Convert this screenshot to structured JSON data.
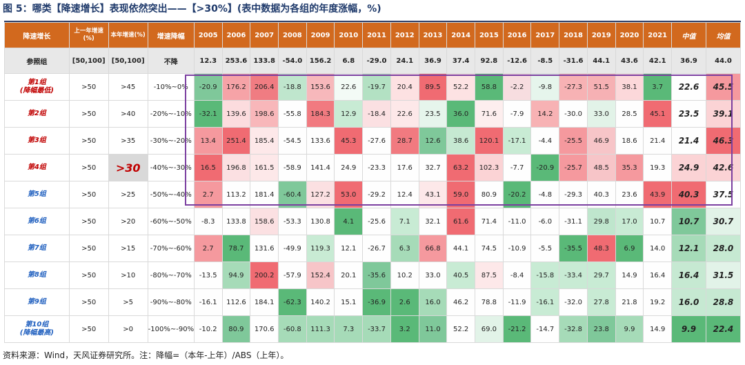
{
  "title": "图 5：哪类【降速增长】表现依然突出——【>30%】(表中数据为各组的年度涨幅，%)",
  "footnote": "资料来源：Wind，天风证券研究所。注：降幅=（本年-上年）/ABS（上年）。",
  "headers": [
    "降速增长",
    "上一年增速(%)",
    "本年增速(%)",
    "增速降幅",
    "2005",
    "2006",
    "2007",
    "2008",
    "2009",
    "2010",
    "2011",
    "2012",
    "2013",
    "2014",
    "2015",
    "2016",
    "2017",
    "2018",
    "2019",
    "2020",
    "2021",
    "中值",
    "均值"
  ],
  "reference": {
    "name": "参照组",
    "prev": "[50,100]",
    "cur": "[50,100]",
    "drop": "不降",
    "values": [
      "12.3",
      "253.6",
      "133.8",
      "-54.0",
      "156.2",
      "6.8",
      "-29.0",
      "24.1",
      "36.9",
      "37.4",
      "92.8",
      "-12.6",
      "-8.5",
      "-31.6",
      "44.1",
      "43.6",
      "42.1"
    ],
    "median": "36.9",
    "mean": "44.0"
  },
  "groups": [
    {
      "name": "第1组",
      "sub": "(降幅最低)",
      "red": true,
      "prev": ">50",
      "cur": ">45",
      "drop": "-10%~0%",
      "values": [
        "-20.9",
        "176.2",
        "206.4",
        "-18.8",
        "153.6",
        "22.6",
        "-19.7",
        "20.4",
        "89.5",
        "52.2",
        "58.8",
        "-2.2",
        "-9.8",
        "-27.3",
        "51.5",
        "38.1",
        "3.7"
      ],
      "colors": [
        "#7fc89a",
        "#f6a3a7",
        "#f07c82",
        "#bfe6cd",
        "#f7b8bb",
        "#f3fbf6",
        "#b3e1c3",
        "#fde1e2",
        "#f06b72",
        "#fde2e3",
        "#5ab978",
        "#f7dde0",
        "#e6f5ec",
        "#f7b2b4",
        "#f6b1b4",
        "#fcd8da",
        "#5ab978"
      ],
      "median": "22.6",
      "mean": "45.5",
      "median_color": "#fefefe",
      "mean_color": "#f5999e"
    },
    {
      "name": "第2组",
      "sub": "",
      "red": true,
      "prev": ">50",
      "cur": ">40",
      "drop": "-20%~-10%",
      "values": [
        "-32.1",
        "139.6",
        "198.6",
        "-55.8",
        "184.3",
        "12.9",
        "-18.4",
        "22.6",
        "23.5",
        "36.0",
        "71.6",
        "-7.9",
        "14.2",
        "-30.0",
        "33.0",
        "28.5",
        "45.1"
      ],
      "colors": [
        "#5ab978",
        "#fcdcde",
        "#f8b7ba",
        "#fefefe",
        "#f17a80",
        "#c8ebd4",
        "#fbe0e2",
        "#fde8e9",
        "#e6f5ec",
        "#5ab978",
        "#fdeeee",
        "#fefefe",
        "#f7b2b4",
        "#fefefe",
        "#e2f3e8",
        "#fefefe",
        "#f06b72"
      ],
      "median": "23.5",
      "mean": "39.1",
      "median_color": "#fefefe",
      "mean_color": "#fbd3d5"
    },
    {
      "name": "第3组",
      "sub": "",
      "red": true,
      "prev": ">50",
      "cur": ">35",
      "drop": "-30%~-20%",
      "values": [
        "13.4",
        "251.4",
        "185.4",
        "-54.5",
        "133.6",
        "45.3",
        "-27.6",
        "28.7",
        "12.6",
        "38.6",
        "120.1",
        "-17.1",
        "-4.4",
        "-25.5",
        "46.9",
        "18.6",
        "21.4"
      ],
      "colors": [
        "#f5999e",
        "#f06b72",
        "#fde8e9",
        "#fefefe",
        "#fefefe",
        "#f06b72",
        "#fefefe",
        "#f17a80",
        "#7fc89a",
        "#c6e9d2",
        "#f06b72",
        "#c8ebd4",
        "#fefefe",
        "#f5999e",
        "#f7c5c8",
        "#fefefe",
        "#fefefe"
      ],
      "median": "21.4",
      "mean": "46.3",
      "median_color": "#fefefe",
      "mean_color": "#f06b72"
    },
    {
      "name": "第4组",
      "sub": "",
      "red": true,
      "prev": ">50",
      "cur": ">30",
      "drop": "-40%~-30%",
      "cur_big": true,
      "values": [
        "16.5",
        "196.8",
        "161.5",
        "-58.9",
        "141.4",
        "24.9",
        "-23.3",
        "17.6",
        "32.7",
        "63.2",
        "102.3",
        "-7.7",
        "-20.9",
        "-25.7",
        "48.5",
        "35.3",
        "19.3"
      ],
      "colors": [
        "#f06b72",
        "#fbe0e2",
        "#fde8e9",
        "#fefefe",
        "#fefefe",
        "#fefefe",
        "#fefefe",
        "#fefefe",
        "#fefefe",
        "#f06b72",
        "#fbd3d5",
        "#fefefe",
        "#5ab978",
        "#f5999e",
        "#f7c5c8",
        "#f5999e",
        "#fefefe"
      ],
      "median": "24.9",
      "mean": "42.6",
      "median_color": "#fbd3d5",
      "mean_color": "#fbd3d5"
    },
    {
      "name": "第5组",
      "sub": "",
      "red": false,
      "prev": ">50",
      "cur": ">25",
      "drop": "-50%~-40%",
      "values": [
        "2.7",
        "113.2",
        "181.4",
        "-60.4",
        "127.2",
        "53.0",
        "-29.2",
        "12.4",
        "43.1",
        "59.0",
        "80.9",
        "-20.2",
        "-4.8",
        "-29.3",
        "40.3",
        "23.6",
        "43.9"
      ],
      "colors": [
        "#f5999e",
        "#fefefe",
        "#fefefe",
        "#7fc89a",
        "#fbe0e2",
        "#f06b72",
        "#fefefe",
        "#fefefe",
        "#fde8e9",
        "#f06b72",
        "#fefefe",
        "#5ab978",
        "#fefefe",
        "#fefefe",
        "#fefefe",
        "#fefefe",
        "#f06b72"
      ],
      "median": "40.3",
      "mean": "37.5",
      "median_color": "#f06b72",
      "mean_color": "#fefefe"
    },
    {
      "name": "第6组",
      "sub": "",
      "red": false,
      "prev": ">50",
      "cur": ">20",
      "drop": "-60%~-50%",
      "values": [
        "-8.3",
        "133.8",
        "158.6",
        "-53.3",
        "130.8",
        "4.1",
        "-25.6",
        "7.1",
        "32.1",
        "61.6",
        "71.4",
        "-11.0",
        "-6.0",
        "-31.1",
        "29.8",
        "17.0",
        "10.7"
      ],
      "colors": [
        "#fefefe",
        "#fefefe",
        "#fbe0e2",
        "#fefefe",
        "#fefefe",
        "#5ab978",
        "#fefefe",
        "#c8ebd4",
        "#fefefe",
        "#f06b72",
        "#fefefe",
        "#fefefe",
        "#fefefe",
        "#fefefe",
        "#bfe6cd",
        "#c8ebd4",
        "#fefefe"
      ],
      "median": "10.7",
      "mean": "30.7",
      "median_color": "#7fc89a",
      "mean_color": "#e2f3e8"
    },
    {
      "name": "第7组",
      "sub": "",
      "red": false,
      "prev": ">50",
      "cur": ">15",
      "drop": "-70%~-60%",
      "values": [
        "2.7",
        "78.7",
        "131.6",
        "-49.9",
        "119.3",
        "12.1",
        "-26.7",
        "6.3",
        "66.8",
        "44.1",
        "74.5",
        "-10.9",
        "-5.5",
        "-35.5",
        "48.3",
        "6.9",
        "14.0"
      ],
      "colors": [
        "#f5999e",
        "#5ab978",
        "#fefefe",
        "#fefefe",
        "#c8ebd4",
        "#fefefe",
        "#fefefe",
        "#a6dbb8",
        "#f5999e",
        "#fefefe",
        "#fefefe",
        "#fefefe",
        "#fefefe",
        "#5ab978",
        "#f06b72",
        "#5ab978",
        "#fefefe"
      ],
      "median": "12.1",
      "mean": "28.0",
      "median_color": "#a6dbb8",
      "mean_color": "#c6e9d2"
    },
    {
      "name": "第8组",
      "sub": "",
      "red": false,
      "prev": ">50",
      "cur": ">10",
      "drop": "-80%~-70%",
      "values": [
        "-13.5",
        "94.9",
        "200.2",
        "-57.9",
        "152.4",
        "20.1",
        "-35.6",
        "10.2",
        "33.0",
        "40.5",
        "87.5",
        "-8.4",
        "-15.8",
        "-33.4",
        "29.7",
        "14.9",
        "16.4"
      ],
      "colors": [
        "#fefefe",
        "#a6dbb8",
        "#f06b72",
        "#fefefe",
        "#f7c5c8",
        "#fefefe",
        "#7fc89a",
        "#fefefe",
        "#fefefe",
        "#c8ebd4",
        "#fde8e9",
        "#fefefe",
        "#c8ebd4",
        "#c8ebd4",
        "#c8ebd4",
        "#fefefe",
        "#fefefe"
      ],
      "median": "16.4",
      "mean": "31.5",
      "median_color": "#c6e9d2",
      "mean_color": "#e2f3e8"
    },
    {
      "name": "第9组",
      "sub": "",
      "red": false,
      "prev": ">50",
      "cur": ">5",
      "drop": "-90%~-80%",
      "values": [
        "-16.1",
        "112.6",
        "184.1",
        "-62.3",
        "140.2",
        "15.1",
        "-36.9",
        "2.6",
        "16.0",
        "46.2",
        "78.8",
        "-11.9",
        "-16.1",
        "-32.0",
        "27.8",
        "21.8",
        "19.2"
      ],
      "colors": [
        "#fefefe",
        "#fefefe",
        "#fefefe",
        "#5ab978",
        "#fefefe",
        "#fefefe",
        "#5ab978",
        "#5ab978",
        "#a6dbb8",
        "#fefefe",
        "#fefefe",
        "#fefefe",
        "#c8ebd4",
        "#fefefe",
        "#c8ebd4",
        "#fefefe",
        "#fefefe"
      ],
      "median": "16.0",
      "mean": "28.8",
      "median_color": "#c6e9d2",
      "mean_color": "#c6e9d2"
    },
    {
      "name": "第10组",
      "sub": "(降幅最高)",
      "red": false,
      "prev": ">50",
      "cur": ">0",
      "drop": "-100%~-90%",
      "values": [
        "-10.2",
        "80.9",
        "170.6",
        "-60.8",
        "111.3",
        "7.3",
        "-33.7",
        "3.2",
        "11.0",
        "52.2",
        "69.0",
        "-21.2",
        "-14.7",
        "-32.8",
        "23.8",
        "9.9",
        "14.9"
      ],
      "colors": [
        "#fefefe",
        "#7fc89a",
        "#fefefe",
        "#a6dbb8",
        "#a6dbb8",
        "#a6dbb8",
        "#a6dbb8",
        "#5ab978",
        "#7fc89a",
        "#fefefe",
        "#e2f3e8",
        "#5ab978",
        "#fefefe",
        "#a6dbb8",
        "#7fc89a",
        "#a6dbb8",
        "#fefefe"
      ],
      "median": "9.9",
      "mean": "22.4",
      "median_color": "#5ab978",
      "mean_color": "#5ab978"
    }
  ]
}
